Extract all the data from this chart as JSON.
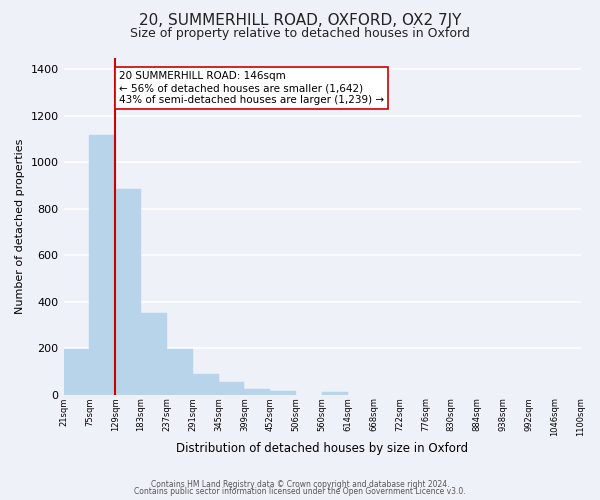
{
  "title": "20, SUMMERHILL ROAD, OXFORD, OX2 7JY",
  "subtitle": "Size of property relative to detached houses in Oxford",
  "xlabel": "Distribution of detached houses by size in Oxford",
  "ylabel": "Number of detached properties",
  "bar_values": [
    195,
    1115,
    885,
    350,
    195,
    90,
    55,
    25,
    15,
    0,
    12,
    0,
    0,
    0,
    0,
    0,
    0,
    0,
    0,
    0
  ],
  "bin_labels": [
    "21sqm",
    "75sqm",
    "129sqm",
    "183sqm",
    "237sqm",
    "291sqm",
    "345sqm",
    "399sqm",
    "452sqm",
    "506sqm",
    "560sqm",
    "614sqm",
    "668sqm",
    "722sqm",
    "776sqm",
    "830sqm",
    "884sqm",
    "938sqm",
    "992sqm",
    "1046sqm",
    "1100sqm"
  ],
  "bar_color": "#b8d4ea",
  "bar_edge_color": "#b8d4ea",
  "vline_x_index": 2,
  "vline_color": "#cc0000",
  "annotation_text": "20 SUMMERHILL ROAD: 146sqm\n← 56% of detached houses are smaller (1,642)\n43% of semi-detached houses are larger (1,239) →",
  "annotation_box_color": "#ffffff",
  "annotation_box_edge": "#cc0000",
  "ylim": [
    0,
    1450
  ],
  "yticks": [
    0,
    200,
    400,
    600,
    800,
    1000,
    1200,
    1400
  ],
  "footer_line1": "Contains HM Land Registry data © Crown copyright and database right 2024.",
  "footer_line2": "Contains public sector information licensed under the Open Government Licence v3.0.",
  "background_color": "#eef2f8",
  "grid_color": "#ffffff"
}
